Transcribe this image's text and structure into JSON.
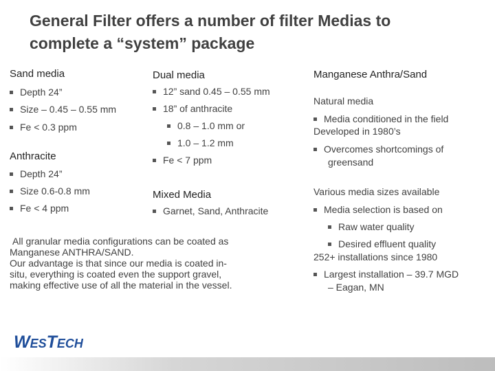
{
  "title": {
    "line1": "General Filter offers a number of filter Medias to",
    "line2": "complete a “system” package"
  },
  "col1": {
    "sand_header": "Sand media",
    "sand_items": [
      "Depth 24”",
      "Size – 0.45 – 0.55 mm",
      "Fe < 0.3 ppm"
    ],
    "anthracite_header": "Anthracite",
    "anthracite_items": [
      "Depth 24”",
      "Size 0.6-0.8 mm",
      "Fe < 4 ppm"
    ]
  },
  "col2": {
    "dual_header": "Dual media",
    "dual_items": [
      "12” sand 0.45 – 0.55 mm",
      "18” of anthracite"
    ],
    "dual_sub_items": [
      "0.8 – 1.0 mm or",
      "1.0 – 1.2 mm"
    ],
    "dual_items_after": "Fe < 7 ppm",
    "mixed_header": "Mixed Media",
    "mixed_items": [
      "Garnet, Sand, Anthracite"
    ]
  },
  "coating_paragraph": {
    "line1": "All granular media configurations can be coated as",
    "line2": "Manganese ANTHRA/SAND.",
    "line3": "Our advantage is that since our media is coated in-",
    "line4": "situ, everything is coated even the support gravel,",
    "line5": "making effective use of all the material in the vessel."
  },
  "col3": {
    "header": "Manganese Anthra/Sand",
    "natural_media": "Natural media",
    "conditioned": "Media conditioned in the field",
    "developed": "Developed in 1980’s",
    "overcomes_line1": "Overcomes shortcomings of",
    "overcomes_line2": "greensand",
    "various_sizes": "Various media sizes available",
    "selection": "Media selection is based on",
    "raw_water": "Raw water quality",
    "effluent": "Desired effluent quality",
    "installations": "252+ installations since 1980",
    "largest_line1": "Largest installation – 39.7 MGD",
    "largest_line2": "– Eagan, MN"
  },
  "logo": {
    "part1": "W",
    "part2": "ES",
    "part3": "T",
    "part4": "ECH",
    "color": "#1f4e9a"
  }
}
